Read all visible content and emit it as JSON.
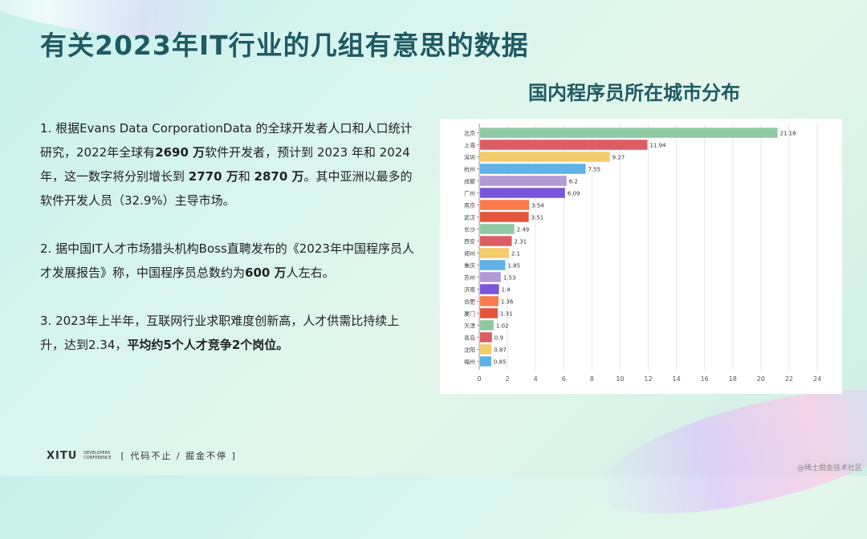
{
  "page": {
    "title": "有关2023年IT行业的几组有意思的数据",
    "chart_heading": "国内程序员所在城市分布"
  },
  "paragraphs": [
    {
      "segments": [
        {
          "text": "1. 根据Evans Data CorporationData 的全球开发者人口和人口统计研究，2022年全球有",
          "bold": false
        },
        {
          "text": "2690 万",
          "bold": true
        },
        {
          "text": "软件开发者，预计到 2023 年和 2024 年，这一数字将分别增长到 ",
          "bold": false
        },
        {
          "text": "2770 万",
          "bold": true
        },
        {
          "text": "和 ",
          "bold": false
        },
        {
          "text": "2870 万",
          "bold": true
        },
        {
          "text": "。其中亚洲以最多的软件开发人员（32.9%）主导市场。",
          "bold": false
        }
      ]
    },
    {
      "segments": [
        {
          "text": "2. 据中国IT人才市场猎头机构Boss直聘发布的《2023年中国程序员人才发展报告》称，中国程序员总数约为",
          "bold": false
        },
        {
          "text": "600 万",
          "bold": true
        },
        {
          "text": "人左右。",
          "bold": false
        }
      ]
    },
    {
      "segments": [
        {
          "text": "3. 2023年上半年，互联网行业求职难度创新高，人才供需比持续上升，达到2.34，",
          "bold": false
        },
        {
          "text": "平均约5个人才竞争2个岗位。",
          "bold": true
        }
      ]
    }
  ],
  "chart_data": {
    "type": "bar",
    "orientation": "horizontal",
    "title": "国内程序员所在城市分布",
    "categories": [
      "北京",
      "上海",
      "深圳",
      "杭州",
      "成都",
      "广州",
      "南京",
      "武汉",
      "长沙",
      "西安",
      "郑州",
      "重庆",
      "苏州",
      "济南",
      "合肥",
      "厦门",
      "天津",
      "青岛",
      "沈阳",
      "福州"
    ],
    "values": [
      21.18,
      11.94,
      9.27,
      7.55,
      6.2,
      6.09,
      3.54,
      3.51,
      2.49,
      2.31,
      2.1,
      1.85,
      1.53,
      1.4,
      1.36,
      1.31,
      1.02,
      0.9,
      0.87,
      0.85
    ],
    "value_labels": [
      "21.18",
      "11.94",
      "9.27",
      "7.55",
      "6.2",
      "6.09",
      "3.54",
      "3.51",
      "2.49",
      "2.31",
      "2.1",
      "1.85",
      "1.53",
      "1.4",
      "1.36",
      "1.31",
      "1.02",
      "0.9",
      "0.87",
      "0.85"
    ],
    "colors": [
      "#8fc9a3",
      "#dd5d63",
      "#f5cc6b",
      "#5fb1e8",
      "#b29ad6",
      "#7a56dc",
      "#fb7a4a",
      "#e4553a",
      "#8fc9a3",
      "#dd5d63",
      "#f5cc6b",
      "#5fb1e8",
      "#b29ad6",
      "#7a56dc",
      "#fb7a4a",
      "#e4553a",
      "#8fc9a3",
      "#dd5d63",
      "#f5cc6b",
      "#5fb1e8"
    ],
    "xlim": [
      0,
      24
    ],
    "xticks": [
      "0",
      "2",
      "4",
      "6",
      "8",
      "10",
      "12",
      "14",
      "16",
      "18",
      "20",
      "22",
      "24"
    ],
    "grid": true,
    "xlabel": "",
    "ylabel": ""
  },
  "footer": {
    "logo": "XITU",
    "logo_sub_1": "DEVELOPERS",
    "logo_sub_2": "CONFERENCE",
    "slogan": "[ 代码不止 / 掘金不停 ]"
  },
  "watermark": "@稀土掘金技术社区"
}
